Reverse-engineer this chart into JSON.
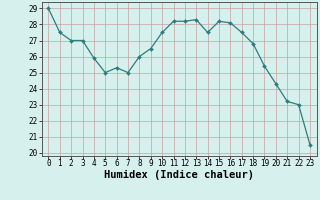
{
  "x": [
    0,
    1,
    2,
    3,
    4,
    5,
    6,
    7,
    8,
    9,
    10,
    11,
    12,
    13,
    14,
    15,
    16,
    17,
    18,
    19,
    20,
    21,
    22,
    23
  ],
  "y": [
    29.0,
    27.5,
    27.0,
    27.0,
    25.9,
    25.0,
    25.3,
    25.0,
    26.0,
    26.5,
    27.5,
    28.2,
    28.2,
    28.3,
    27.5,
    28.2,
    28.1,
    27.5,
    26.8,
    25.4,
    24.3,
    23.2,
    23.0,
    20.5
  ],
  "xlabel": "Humidex (Indice chaleur)",
  "ylim": [
    19.8,
    29.4
  ],
  "yticks": [
    20,
    21,
    22,
    23,
    24,
    25,
    26,
    27,
    28,
    29
  ],
  "xticks": [
    0,
    1,
    2,
    3,
    4,
    5,
    6,
    7,
    8,
    9,
    10,
    11,
    12,
    13,
    14,
    15,
    16,
    17,
    18,
    19,
    20,
    21,
    22,
    23
  ],
  "line_color": "#2d7d7d",
  "marker_color": "#2d7d7d",
  "bg_color": "#d6f0ee",
  "grid_color": "#c8a0a0",
  "tick_fontsize": 5.5,
  "label_fontsize": 7.5
}
